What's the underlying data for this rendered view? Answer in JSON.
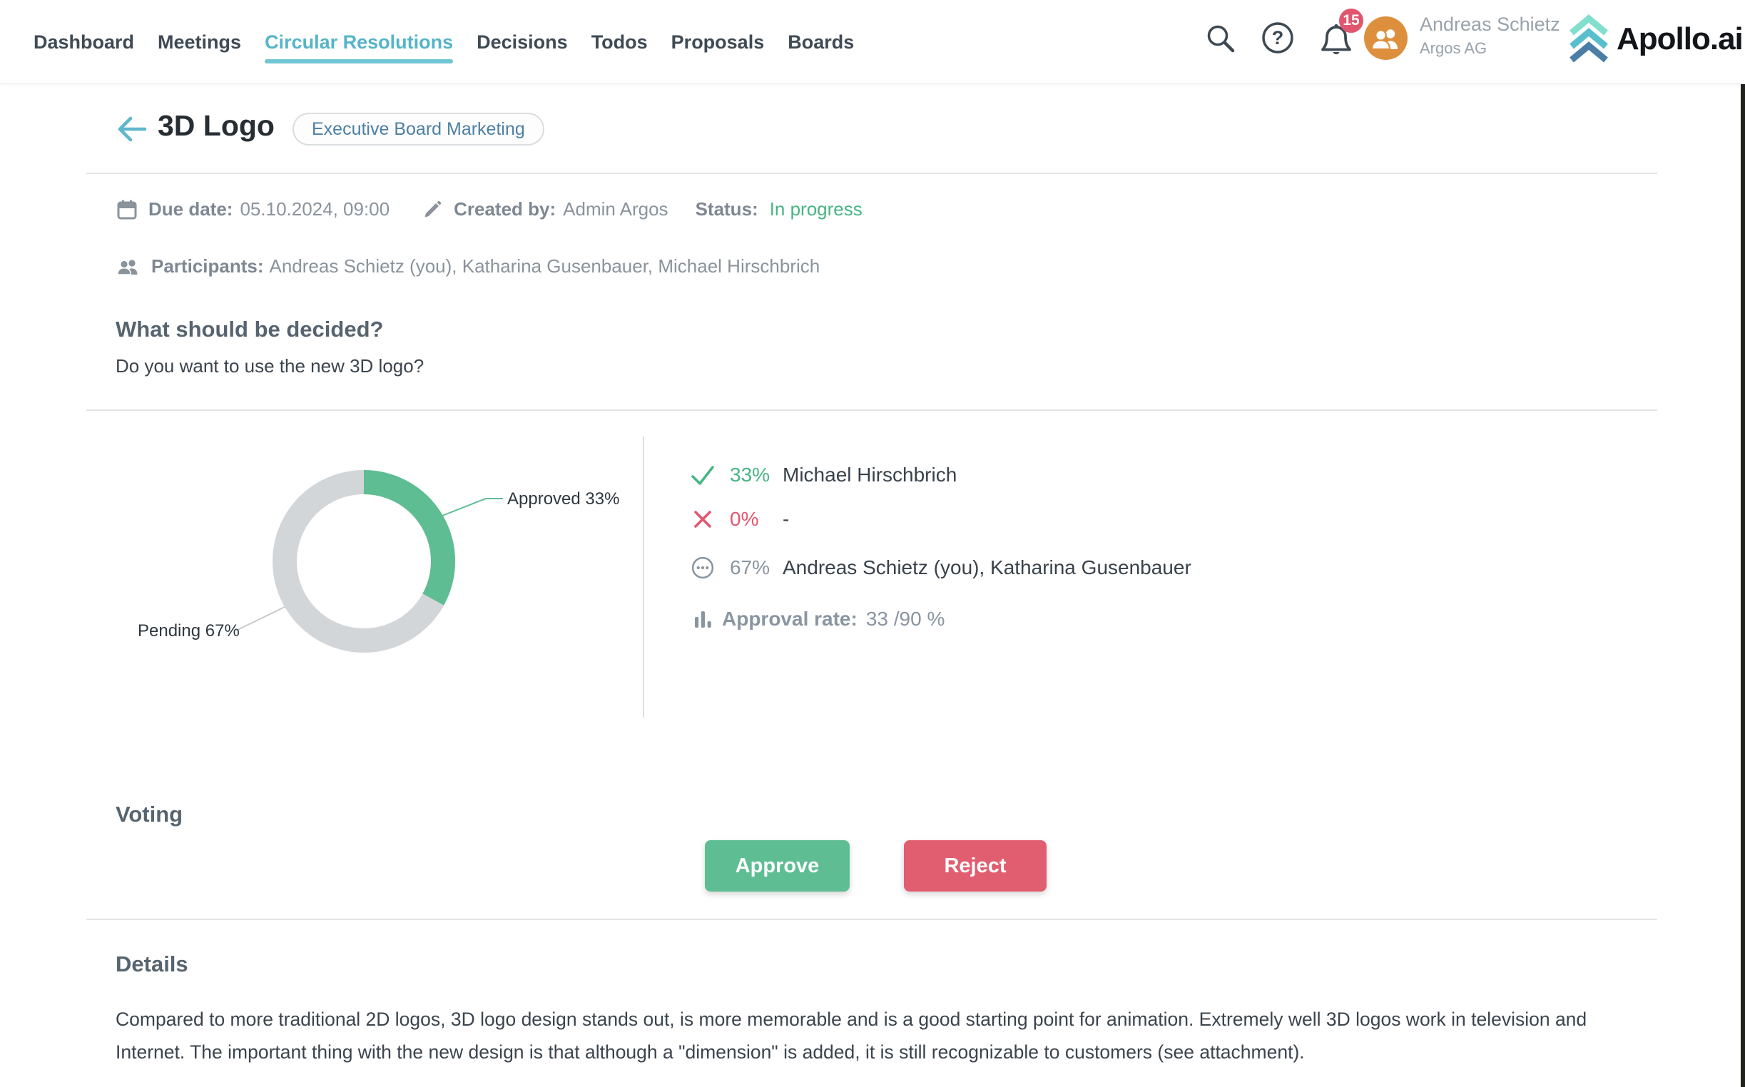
{
  "header": {
    "nav": [
      {
        "label": "Dashboard",
        "active": false
      },
      {
        "label": "Meetings",
        "active": false
      },
      {
        "label": "Circular Resolutions",
        "active": true
      },
      {
        "label": "Decisions",
        "active": false
      },
      {
        "label": "Todos",
        "active": false
      },
      {
        "label": "Proposals",
        "active": false
      },
      {
        "label": "Boards",
        "active": false
      }
    ],
    "notification_count": "15",
    "user": {
      "name": "Andreas Schietz",
      "company": "Argos AG"
    },
    "logo_text": "Apollo.ai"
  },
  "page": {
    "title": "3D Logo",
    "badge": "Executive Board Marketing",
    "meta": {
      "due_date_label": "Due date:",
      "due_date": "05.10.2024, 09:00",
      "created_by_label": "Created by:",
      "created_by": "Admin Argos",
      "status_label": "Status:",
      "status": "In progress"
    },
    "participants_label": "Participants:",
    "participants": "Andreas Schietz (you), Katharina Gusenbauer, Michael Hirschbrich",
    "question_heading": "What should be decided?",
    "question": "Do you want to use the new 3D logo?"
  },
  "chart_data": {
    "type": "pie",
    "donut": true,
    "slices": [
      {
        "label": "Approved",
        "value": 33,
        "color": "#5ebd93"
      },
      {
        "label": "Pending",
        "value": 67,
        "color": "#d3d6d9"
      }
    ],
    "labels": {
      "approved": "Approved 33%",
      "pending": "Pending 67%"
    },
    "legend_position": "callout-labels",
    "title": ""
  },
  "votes": {
    "rows": [
      {
        "icon": "check",
        "percent": "33%",
        "names": "Michael Hirschbrich"
      },
      {
        "icon": "cross",
        "percent": "0%",
        "names": "-"
      },
      {
        "icon": "pending",
        "percent": "67%",
        "names": "Andreas Schietz (you), Katharina Gusenbauer"
      }
    ],
    "approval_rate_label": "Approval rate:",
    "approval_rate": "33 /90 %"
  },
  "voting": {
    "heading": "Voting",
    "approve_label": "Approve",
    "reject_label": "Reject"
  },
  "details": {
    "heading": "Details",
    "text": "Compared to more traditional 2D logos, 3D logo design stands out, is more memorable and is a good starting point for animation. Extremely well 3D logos work in television and Internet. The important thing with the new design is that although a \"dimension\" is added, it is still recognizable to customers (see attachment)."
  },
  "colors": {
    "accent_teal": "#55b4c8",
    "accent_teal_light": "#70c6d3",
    "status_green": "#47b682",
    "donut_green": "#5ebd93",
    "donut_gray": "#d3d6d9",
    "red": "#e2566e",
    "approve_btn": "#5ebd93",
    "reject_btn": "#e15e71",
    "notification_badge": "#e0566e",
    "avatar_orange": "#dd8f3d",
    "badge_text_blue": "#4d80a4",
    "heading_slate": "#57646f",
    "text_dark": "#3b444d",
    "text_gray": "#8a939c",
    "logo_mint": "#82dfcd",
    "logo_teal": "#58bfcd",
    "logo_blue": "#4a7ea7"
  }
}
